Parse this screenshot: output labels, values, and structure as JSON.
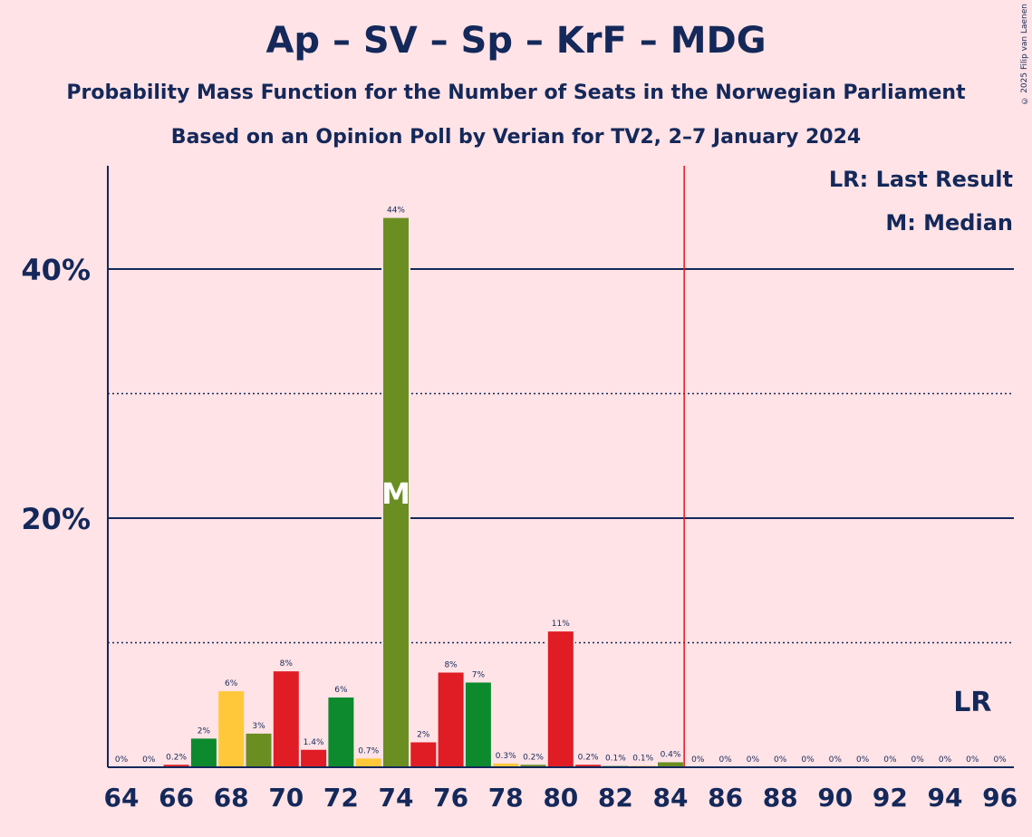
{
  "header": {
    "title": "Ap – SV – Sp – KrF – MDG",
    "subtitle": "Probability Mass Function for the Number of Seats in the Norwegian Parliament",
    "source": "Based on an Opinion Poll by Verian for TV2, 2–7 January 2024",
    "copyright": "© 2025 Filip van Laenen"
  },
  "legend": {
    "last_result": "LR: Last Result",
    "median": "M: Median"
  },
  "colors": {
    "background": "#FFE3E6",
    "text": "#14285A",
    "majority_line": "#E8121E",
    "Ap": "#E01C24",
    "Sp": "#6B8E23",
    "SV": "#E01C24",
    "KrF": "#FFC83A",
    "MDG": "#0E8A2E"
  },
  "chart_data": {
    "type": "bar",
    "ylim": [
      0,
      48
    ],
    "y_ticks": [
      20,
      40
    ],
    "y_tick_labels": [
      "20%",
      "40%"
    ],
    "y_minor_gridlines": [
      10,
      30
    ],
    "x_tick_labels": [
      "64",
      "66",
      "68",
      "70",
      "72",
      "74",
      "76",
      "78",
      "80",
      "82",
      "84",
      "86",
      "88",
      "90",
      "92",
      "94",
      "96"
    ],
    "majority_threshold_after_seat": 84,
    "median_seat": 74,
    "median_label": "M",
    "last_result_seat": 95,
    "last_result_label": "LR",
    "seats": [
      64,
      65,
      66,
      67,
      68,
      69,
      70,
      71,
      72,
      73,
      74,
      75,
      76,
      77,
      78,
      79,
      80,
      81,
      82,
      83,
      84,
      85,
      86,
      87,
      88,
      89,
      90,
      91,
      92,
      93,
      94,
      95,
      96
    ],
    "values": [
      0,
      0,
      0.2,
      2.3,
      6.1,
      2.7,
      7.7,
      1.4,
      5.6,
      0.7,
      44.1,
      2.0,
      7.6,
      6.8,
      0.3,
      0.2,
      10.9,
      0.2,
      0.1,
      0.1,
      0.4,
      0,
      0,
      0,
      0,
      0,
      0,
      0,
      0,
      0,
      0,
      0,
      0
    ],
    "value_labels": [
      "0%",
      "0%",
      "0.2%",
      "2%",
      "6%",
      "3%",
      "8%",
      "1.4%",
      "6%",
      "0.7%",
      "44%",
      "2%",
      "8%",
      "7%",
      "0.3%",
      "0.2%",
      "11%",
      "0.2%",
      "0.1%",
      "0.1%",
      "0.4%",
      "0%",
      "0%",
      "0%",
      "0%",
      "0%",
      "0%",
      "0%",
      "0%",
      "0%",
      "0%",
      "0%",
      "0%"
    ],
    "bar_colors": [
      "#E01C24",
      "#E01C24",
      "#E01C24",
      "#0E8A2E",
      "#FFC83A",
      "#6B8E23",
      "#E01C24",
      "#E01C24",
      "#0E8A2E",
      "#FFC83A",
      "#6B8E23",
      "#E01C24",
      "#E01C24",
      "#0E8A2E",
      "#FFC83A",
      "#6B8E23",
      "#E01C24",
      "#E01C24",
      "#0E8A2E",
      "#FFC83A",
      "#6B8E23",
      "#E01C24",
      "#E01C24",
      "#0E8A2E",
      "#FFC83A",
      "#6B8E23",
      "#E01C24",
      "#E01C24",
      "#0E8A2E",
      "#FFC83A",
      "#6B8E23",
      "#E01C24",
      "#E01C24"
    ]
  }
}
